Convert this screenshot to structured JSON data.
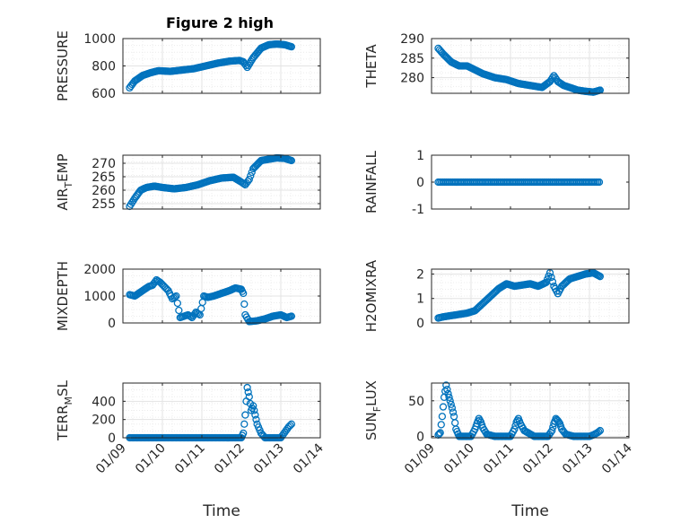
{
  "figure": {
    "title": "Figure 2 high",
    "colors": {
      "marker": "#0072bd",
      "axis": "#262626",
      "grid_major": "#e3e3e3",
      "grid_minor": "#ececec"
    }
  },
  "chart_data": [
    {
      "type": "scatter",
      "title": "Figure 2 high",
      "xlabel": "",
      "ylabel": "PRESSURE",
      "xlim": [
        "01/09",
        "01/14"
      ],
      "ylim": [
        600,
        1000
      ],
      "yticks": [
        "600",
        "800",
        "1000"
      ],
      "xticks": [],
      "grid": true,
      "series": [
        {
          "x": [
            9.17,
            9.3,
            9.5,
            9.7,
            9.9,
            10.2,
            10.5,
            10.8,
            11.1,
            11.4,
            11.7,
            11.95,
            12.05,
            12.15,
            12.3,
            12.5,
            12.7,
            12.9,
            13.1,
            13.27
          ],
          "y": [
            640,
            690,
            730,
            750,
            765,
            760,
            770,
            780,
            800,
            820,
            835,
            840,
            830,
            790,
            860,
            930,
            955,
            960,
            955,
            940
          ]
        }
      ]
    },
    {
      "type": "scatter",
      "ylabel": "THETA",
      "xlim": [
        "01/09",
        "01/14"
      ],
      "ylim": [
        276,
        290
      ],
      "yticks": [
        "280",
        "285",
        "290"
      ],
      "xticks": [],
      "grid": true,
      "series": [
        {
          "x": [
            9.17,
            9.3,
            9.5,
            9.7,
            9.9,
            10.1,
            10.3,
            10.6,
            10.9,
            11.2,
            11.5,
            11.8,
            12.0,
            12.1,
            12.2,
            12.35,
            12.5,
            12.7,
            12.9,
            13.1,
            13.27
          ],
          "y": [
            287.5,
            286,
            284,
            283,
            283,
            282,
            281,
            280,
            279.5,
            278.5,
            278,
            277.5,
            279,
            280.5,
            279,
            278,
            277.5,
            276.8,
            276.5,
            276.3,
            276.8
          ]
        }
      ]
    },
    {
      "type": "scatter",
      "ylabel": "AIR_TEMP",
      "xlim": [
        "01/09",
        "01/14"
      ],
      "ylim": [
        253,
        273
      ],
      "yticks": [
        "255",
        "260",
        "265",
        "270"
      ],
      "xticks": [],
      "grid": true,
      "series": [
        {
          "x": [
            9.17,
            9.3,
            9.45,
            9.6,
            9.8,
            10.0,
            10.3,
            10.6,
            10.9,
            11.2,
            11.5,
            11.8,
            12.0,
            12.1,
            12.2,
            12.3,
            12.5,
            12.7,
            12.9,
            13.1,
            13.27
          ],
          "y": [
            254,
            257,
            260,
            261,
            261.5,
            261,
            260.5,
            261,
            262,
            263.5,
            264.5,
            264.8,
            263,
            262,
            264,
            268,
            271,
            271.5,
            272,
            271.8,
            271
          ]
        }
      ]
    },
    {
      "type": "scatter",
      "ylabel": "RAINFALL",
      "xlim": [
        "01/09",
        "01/14"
      ],
      "ylim": [
        -1,
        1
      ],
      "yticks": [
        "-1",
        "0",
        "1"
      ],
      "xticks": [],
      "grid": false,
      "series": [
        {
          "x": [
            9.17,
            13.27
          ],
          "y": [
            0,
            0
          ]
        }
      ]
    },
    {
      "type": "scatter",
      "ylabel": "MIXDEPTH",
      "xlim": [
        "01/09",
        "01/14"
      ],
      "ylim": [
        0,
        2000
      ],
      "yticks": [
        "0",
        "1000",
        "2000"
      ],
      "xticks": [],
      "grid": true,
      "series": [
        {
          "x": [
            9.17,
            9.3,
            9.5,
            9.65,
            9.75,
            9.85,
            9.95,
            10.05,
            10.15,
            10.25,
            10.35,
            10.45,
            10.55,
            10.65,
            10.75,
            10.85,
            10.95,
            11.05,
            11.15,
            11.3,
            11.5,
            11.7,
            11.85,
            12.0,
            12.05,
            12.1,
            12.2,
            12.4,
            12.6,
            12.8,
            13.0,
            13.15,
            13.27
          ],
          "y": [
            1050,
            1000,
            1200,
            1350,
            1400,
            1600,
            1500,
            1350,
            1200,
            900,
            1000,
            200,
            250,
            300,
            200,
            400,
            300,
            1000,
            950,
            1000,
            1100,
            1200,
            1300,
            1250,
            1100,
            300,
            50,
            80,
            150,
            250,
            300,
            200,
            250
          ]
        }
      ]
    },
    {
      "type": "scatter",
      "ylabel": "H2OMIXRA",
      "xlim": [
        "01/09",
        "01/14"
      ],
      "ylim": [
        0,
        2.2
      ],
      "yticks": [
        "0",
        "1",
        "2"
      ],
      "xticks": [],
      "grid": true,
      "series": [
        {
          "x": [
            9.17,
            9.3,
            9.5,
            9.7,
            9.9,
            10.1,
            10.3,
            10.5,
            10.7,
            10.9,
            11.1,
            11.3,
            11.5,
            11.7,
            11.9,
            12.0,
            12.1,
            12.2,
            12.3,
            12.5,
            12.7,
            12.9,
            13.1,
            13.27
          ],
          "y": [
            0.2,
            0.25,
            0.3,
            0.35,
            0.4,
            0.5,
            0.8,
            1.1,
            1.4,
            1.6,
            1.5,
            1.55,
            1.6,
            1.5,
            1.65,
            2.05,
            1.5,
            1.2,
            1.5,
            1.8,
            1.9,
            2.0,
            2.05,
            1.9
          ]
        }
      ]
    },
    {
      "type": "scatter",
      "ylabel": "TERR_MSL",
      "xlabel": "Time",
      "xlim": [
        "01/09",
        "01/14"
      ],
      "ylim": [
        0,
        600
      ],
      "yticks": [
        "0",
        "200",
        "400"
      ],
      "xticks": [
        "01/09",
        "01/10",
        "01/11",
        "01/12",
        "01/13",
        "01/14"
      ],
      "grid": true,
      "series": [
        {
          "x": [
            9.17,
            9.5,
            10.0,
            10.5,
            11.0,
            11.5,
            12.0,
            12.05,
            12.1,
            12.15,
            12.2,
            12.25,
            12.3,
            12.35,
            12.4,
            12.5,
            12.6,
            12.8,
            13.0,
            13.1,
            13.2,
            13.27
          ],
          "y": [
            0,
            0,
            0,
            0,
            0,
            0,
            0,
            50,
            250,
            550,
            450,
            300,
            350,
            250,
            150,
            50,
            0,
            0,
            0,
            60,
            120,
            150
          ]
        }
      ]
    },
    {
      "type": "scatter",
      "ylabel": "SUN_FLUX",
      "xlabel": "Time",
      "xlim": [
        "01/09",
        "01/14"
      ],
      "ylim": [
        -2,
        75
      ],
      "yticks": [
        "0",
        "50"
      ],
      "xticks": [
        "01/09",
        "01/10",
        "01/11",
        "01/12",
        "01/13",
        "01/14"
      ],
      "grid": true,
      "series": [
        {
          "x": [
            9.17,
            9.22,
            9.27,
            9.32,
            9.37,
            9.42,
            9.47,
            9.52,
            9.57,
            9.62,
            9.7,
            9.9,
            10.0,
            10.1,
            10.15,
            10.2,
            10.25,
            10.3,
            10.4,
            10.6,
            11.0,
            11.1,
            11.15,
            11.2,
            11.25,
            11.35,
            11.6,
            11.95,
            12.05,
            12.1,
            12.15,
            12.2,
            12.25,
            12.3,
            12.4,
            12.6,
            13.0,
            13.1,
            13.2,
            13.27
          ],
          "y": [
            2,
            5,
            28,
            55,
            72,
            60,
            50,
            40,
            28,
            10,
            0,
            0,
            0,
            10,
            18,
            25,
            20,
            12,
            3,
            0,
            0,
            10,
            20,
            25,
            18,
            8,
            0,
            0,
            8,
            18,
            25,
            22,
            18,
            10,
            3,
            0,
            0,
            2,
            5,
            8
          ]
        }
      ]
    }
  ]
}
